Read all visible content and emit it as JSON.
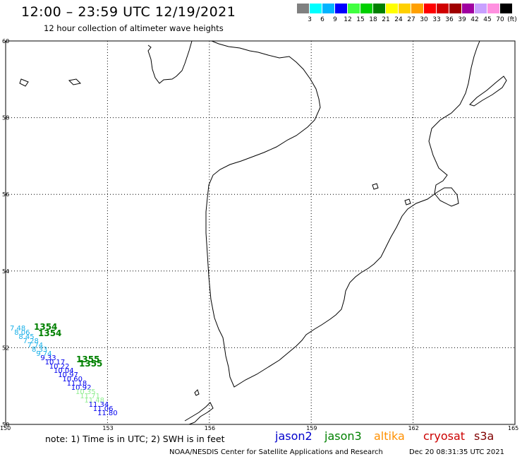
{
  "header": {
    "title": "12:00 – 23:59 UTC 12/19/2021",
    "subtitle": "12 hour collection of altimeter wave heights"
  },
  "legend": {
    "colors": [
      "#808080",
      "#00ffff",
      "#00b4ff",
      "#0000ff",
      "#40ff40",
      "#00d000",
      "#008000",
      "#ffff00",
      "#ffd000",
      "#ffa000",
      "#ff0000",
      "#d00000",
      "#a00000",
      "#a000a0",
      "#c8a0ff",
      "#ff90e0",
      "#000000"
    ],
    "labels": [
      "3",
      "6",
      "9",
      "12",
      "15",
      "18",
      "21",
      "24",
      "27",
      "30",
      "33",
      "36",
      "39",
      "42",
      "45",
      "70"
    ],
    "unit": "(ft)"
  },
  "map": {
    "lat_labels": [
      "60",
      "58",
      "56",
      "54",
      "52",
      "50"
    ],
    "lon_labels": [
      "150",
      "153",
      "156",
      "159",
      "162",
      "165"
    ],
    "tracks": [
      {
        "color": "#1ab0e8",
        "labels": [
          "7.48",
          "8.06",
          "8.45",
          "7.28",
          "7.74",
          "8.33",
          "9.74"
        ]
      },
      {
        "color": "#0000ee",
        "labels": [
          "9.33",
          "10.17",
          "10.22",
          "10.04",
          "10.97",
          "10.60",
          "11.18",
          "10.92"
        ]
      },
      {
        "color": "#90ee90",
        "labels": [
          "10.35",
          "11.71",
          "11.48"
        ]
      },
      {
        "color": "#0000ee",
        "labels": [
          "11.34",
          "11.06",
          "11.80"
        ]
      }
    ],
    "times": [
      {
        "text": "1354",
        "color": "#008000"
      },
      {
        "text": "1355",
        "color": "#008000"
      }
    ]
  },
  "footer": {
    "note": "note: 1) Time is in UTC; 2) SWH is in feet",
    "satellites": [
      {
        "name": "jason2",
        "color": "#0000cc"
      },
      {
        "name": "jason3",
        "color": "#008000"
      },
      {
        "name": "altika",
        "color": "#ff9000"
      },
      {
        "name": "cryosat",
        "color": "#cc0000"
      },
      {
        "name": "s3a",
        "color": "#800000"
      }
    ],
    "credit": "NOAA/NESDIS Center for Satellite Applications and Research",
    "timestamp": "Dec 20 08:31:35 UTC 2021"
  }
}
